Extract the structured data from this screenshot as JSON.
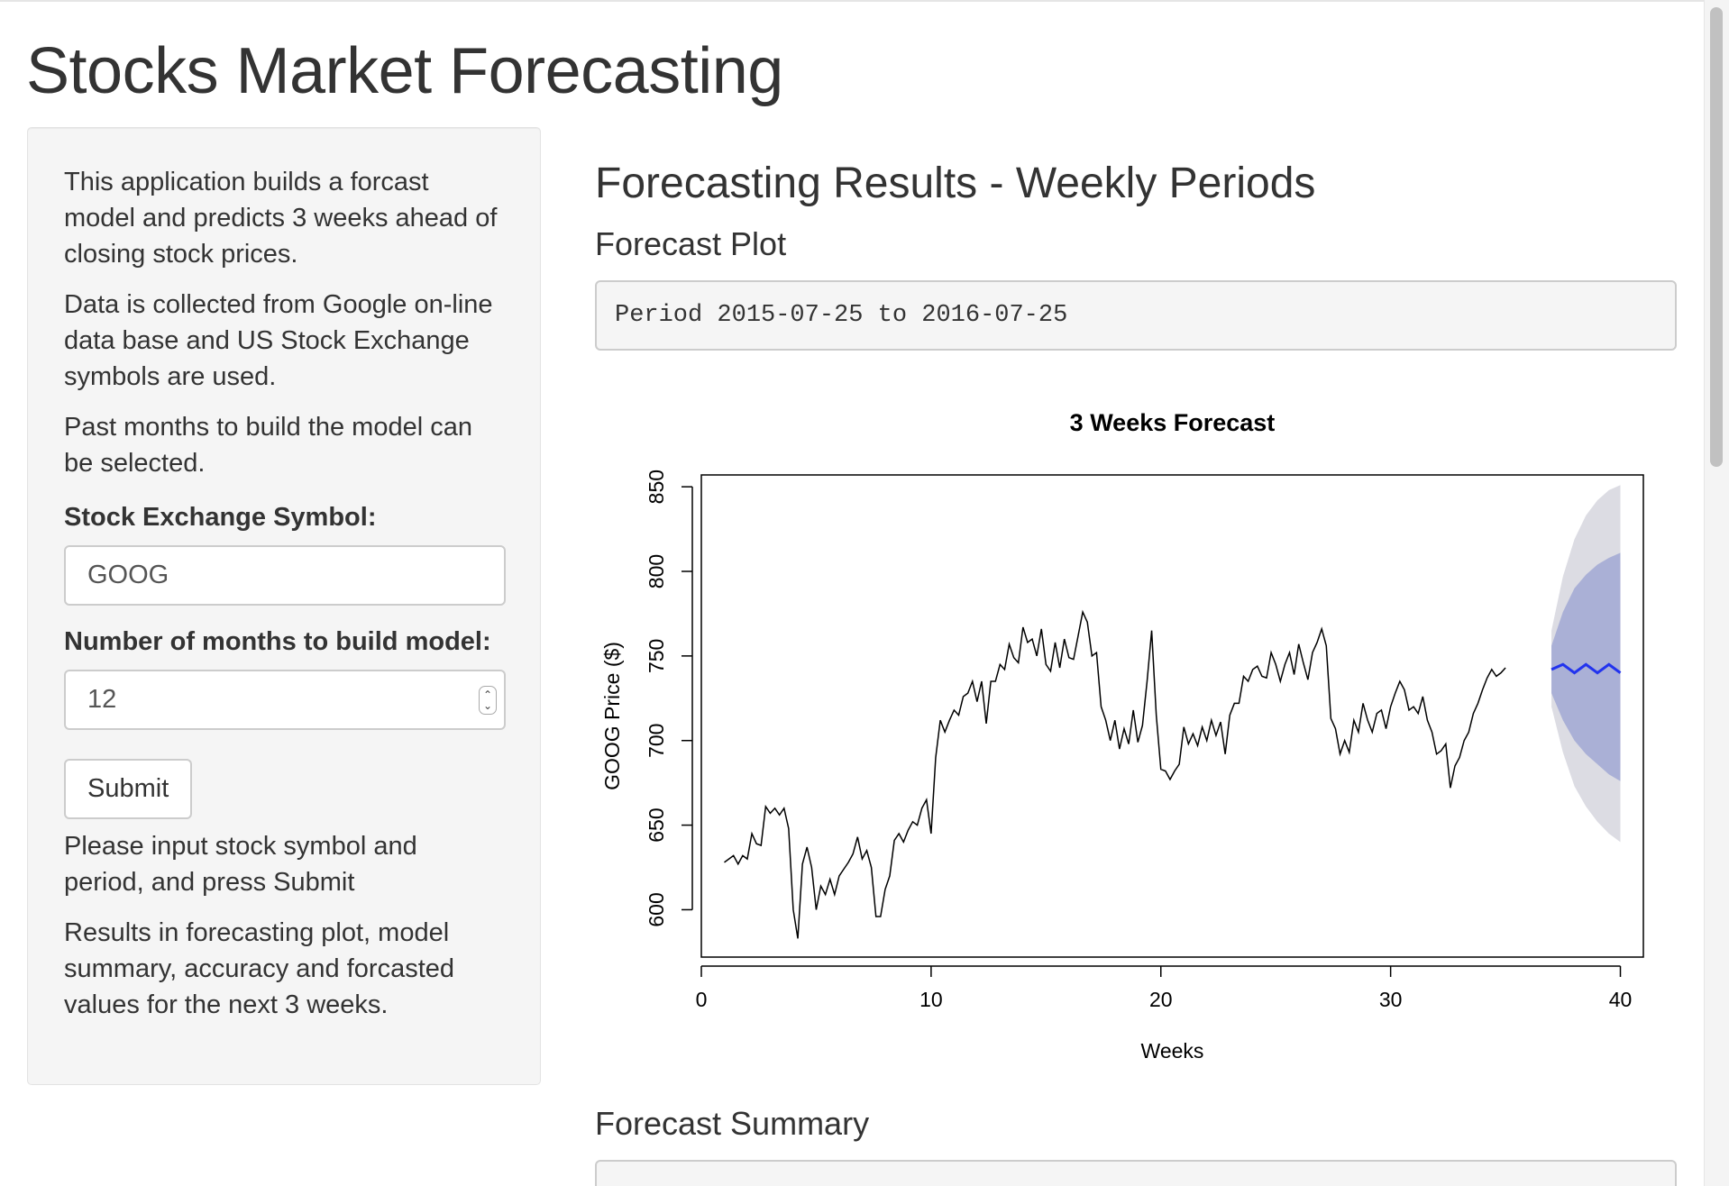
{
  "page": {
    "title": "Stocks Market Forecasting"
  },
  "sidebar": {
    "paragraphs": [
      "This application builds a forcast model and predicts 3 weeks ahead of closing stock prices.",
      "Data is collected from Google on-line data base and US Stock Exchange symbols are used.",
      "Past months to build the model can be selected."
    ],
    "symbol_label": "Stock Exchange Symbol:",
    "symbol_value": "GOOG",
    "months_label": "Number of months to build model:",
    "months_value": "12",
    "submit_label": "Submit",
    "status_text": "Please input stock symbol and period, and press Submit",
    "results_text": "Results in forecasting plot, model summary, accuracy and forcasted values for the next 3 weeks."
  },
  "main": {
    "results_title": "Forecasting Results - Weekly Periods",
    "plot_heading": "Forecast Plot",
    "period_text": "Period 2015-07-25 to 2016-07-25",
    "summary_heading": "Forecast Summary"
  },
  "colors": {
    "history_line": "#000000",
    "forecast_line": "#2233ee",
    "band_80": "#aab0d6",
    "band_95": "#dcdce3"
  },
  "chart_data": {
    "type": "line",
    "title": "3 Weeks Forecast",
    "xlabel": "Weeks",
    "ylabel": "GOOG  Price ($)",
    "xlim": [
      0,
      41
    ],
    "ylim": [
      572,
      857
    ],
    "x_ticks": [
      0,
      10,
      20,
      30,
      40
    ],
    "y_ticks": [
      600,
      650,
      700,
      750,
      800,
      850
    ],
    "grid": false,
    "series": [
      {
        "role": "history",
        "points": [
          [
            1.0,
            628
          ],
          [
            1.2,
            630
          ],
          [
            1.4,
            632
          ],
          [
            1.6,
            627
          ],
          [
            1.8,
            632
          ],
          [
            2.0,
            630
          ],
          [
            2.2,
            645
          ],
          [
            2.4,
            639
          ],
          [
            2.6,
            638
          ],
          [
            2.8,
            661
          ],
          [
            3.0,
            657
          ],
          [
            3.2,
            660
          ],
          [
            3.4,
            656
          ],
          [
            3.6,
            660
          ],
          [
            3.8,
            648
          ],
          [
            4.0,
            600
          ],
          [
            4.2,
            583
          ],
          [
            4.4,
            627
          ],
          [
            4.6,
            637
          ],
          [
            4.8,
            625
          ],
          [
            5.0,
            600
          ],
          [
            5.2,
            614
          ],
          [
            5.4,
            609
          ],
          [
            5.6,
            618
          ],
          [
            5.8,
            609
          ],
          [
            6.0,
            620
          ],
          [
            6.2,
            624
          ],
          [
            6.4,
            628
          ],
          [
            6.6,
            633
          ],
          [
            6.8,
            643
          ],
          [
            7.0,
            630
          ],
          [
            7.2,
            635
          ],
          [
            7.4,
            625
          ],
          [
            7.6,
            596
          ],
          [
            7.8,
            596
          ],
          [
            8.0,
            612
          ],
          [
            8.2,
            620
          ],
          [
            8.4,
            641
          ],
          [
            8.6,
            645
          ],
          [
            8.8,
            640
          ],
          [
            9.0,
            647
          ],
          [
            9.2,
            652
          ],
          [
            9.4,
            650
          ],
          [
            9.6,
            660
          ],
          [
            9.8,
            665
          ],
          [
            10.0,
            645
          ],
          [
            10.2,
            690
          ],
          [
            10.4,
            712
          ],
          [
            10.6,
            705
          ],
          [
            10.8,
            712
          ],
          [
            11.0,
            718
          ],
          [
            11.2,
            715
          ],
          [
            11.4,
            726
          ],
          [
            11.6,
            728
          ],
          [
            11.8,
            735
          ],
          [
            12.0,
            723
          ],
          [
            12.2,
            735
          ],
          [
            12.4,
            710
          ],
          [
            12.6,
            735
          ],
          [
            12.8,
            735
          ],
          [
            13.0,
            745
          ],
          [
            13.2,
            742
          ],
          [
            13.4,
            757
          ],
          [
            13.6,
            749
          ],
          [
            13.8,
            746
          ],
          [
            14.0,
            767
          ],
          [
            14.2,
            758
          ],
          [
            14.4,
            760
          ],
          [
            14.6,
            750
          ],
          [
            14.8,
            766
          ],
          [
            15.0,
            745
          ],
          [
            15.2,
            741
          ],
          [
            15.4,
            758
          ],
          [
            15.6,
            743
          ],
          [
            15.8,
            760
          ],
          [
            16.0,
            749
          ],
          [
            16.2,
            748
          ],
          [
            16.4,
            762
          ],
          [
            16.6,
            776
          ],
          [
            16.8,
            770
          ],
          [
            17.0,
            750
          ],
          [
            17.2,
            752
          ],
          [
            17.4,
            720
          ],
          [
            17.6,
            712
          ],
          [
            17.8,
            700
          ],
          [
            18.0,
            712
          ],
          [
            18.2,
            695
          ],
          [
            18.4,
            707
          ],
          [
            18.6,
            698
          ],
          [
            18.8,
            718
          ],
          [
            19.0,
            699
          ],
          [
            19.2,
            709
          ],
          [
            19.4,
            735
          ],
          [
            19.6,
            765
          ],
          [
            19.8,
            715
          ],
          [
            20.0,
            683
          ],
          [
            20.2,
            682
          ],
          [
            20.4,
            677
          ],
          [
            20.6,
            682
          ],
          [
            20.8,
            686
          ],
          [
            21.0,
            708
          ],
          [
            21.2,
            698
          ],
          [
            21.4,
            704
          ],
          [
            21.6,
            697
          ],
          [
            21.8,
            708
          ],
          [
            22.0,
            700
          ],
          [
            22.2,
            712
          ],
          [
            22.4,
            703
          ],
          [
            22.6,
            711
          ],
          [
            22.8,
            692
          ],
          [
            23.0,
            715
          ],
          [
            23.2,
            722
          ],
          [
            23.4,
            722
          ],
          [
            23.6,
            738
          ],
          [
            23.8,
            735
          ],
          [
            24.0,
            742
          ],
          [
            24.2,
            744
          ],
          [
            24.4,
            738
          ],
          [
            24.6,
            737
          ],
          [
            24.8,
            752
          ],
          [
            25.0,
            745
          ],
          [
            25.2,
            735
          ],
          [
            25.4,
            745
          ],
          [
            25.6,
            752
          ],
          [
            25.8,
            739
          ],
          [
            26.0,
            757
          ],
          [
            26.2,
            746
          ],
          [
            26.4,
            736
          ],
          [
            26.6,
            752
          ],
          [
            26.8,
            758
          ],
          [
            27.0,
            766
          ],
          [
            27.2,
            756
          ],
          [
            27.4,
            713
          ],
          [
            27.6,
            707
          ],
          [
            27.8,
            692
          ],
          [
            28.0,
            700
          ],
          [
            28.2,
            693
          ],
          [
            28.4,
            712
          ],
          [
            28.6,
            705
          ],
          [
            28.8,
            722
          ],
          [
            29.0,
            712
          ],
          [
            29.2,
            705
          ],
          [
            29.4,
            716
          ],
          [
            29.6,
            718
          ],
          [
            29.8,
            707
          ],
          [
            30.0,
            720
          ],
          [
            30.2,
            728
          ],
          [
            30.4,
            735
          ],
          [
            30.6,
            730
          ],
          [
            30.8,
            718
          ],
          [
            31.0,
            720
          ],
          [
            31.2,
            716
          ],
          [
            31.4,
            726
          ],
          [
            31.6,
            712
          ],
          [
            31.8,
            705
          ],
          [
            32.0,
            692
          ],
          [
            32.2,
            694
          ],
          [
            32.4,
            698
          ],
          [
            32.6,
            672
          ],
          [
            32.8,
            685
          ],
          [
            33.0,
            690
          ],
          [
            33.2,
            700
          ],
          [
            33.4,
            705
          ],
          [
            33.6,
            716
          ],
          [
            33.8,
            722
          ],
          [
            34.0,
            730
          ],
          [
            34.2,
            737
          ],
          [
            34.4,
            742
          ],
          [
            34.6,
            738
          ],
          [
            34.8,
            740
          ],
          [
            35.0,
            743
          ]
        ]
      },
      {
        "role": "forecast_mean",
        "x": [
          37.0,
          37.5,
          38.0,
          38.5,
          39.0,
          39.5,
          40.0
        ],
        "values": [
          742,
          745,
          740,
          745,
          740,
          745,
          740
        ]
      },
      {
        "role": "interval_80",
        "x": [
          37.0,
          37.5,
          38.0,
          38.5,
          39.0,
          39.5,
          40.0
        ],
        "lower": [
          728,
          712,
          700,
          692,
          686,
          680,
          676
        ],
        "upper": [
          756,
          776,
          790,
          798,
          804,
          808,
          811
        ]
      },
      {
        "role": "interval_95",
        "x": [
          37.0,
          37.5,
          38.0,
          38.5,
          39.0,
          39.5,
          40.0
        ],
        "lower": [
          720,
          693,
          673,
          661,
          652,
          645,
          640
        ],
        "upper": [
          765,
          797,
          819,
          833,
          842,
          848,
          851
        ]
      }
    ]
  }
}
